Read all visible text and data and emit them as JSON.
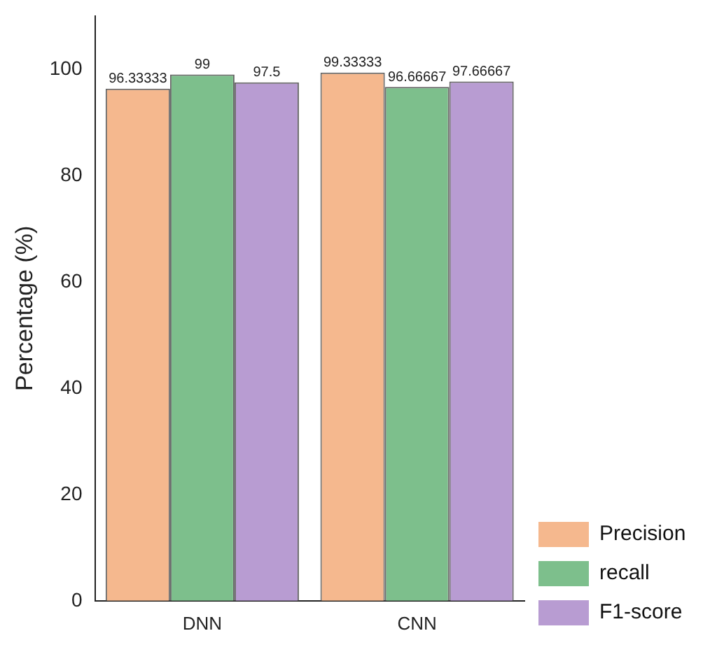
{
  "chart_data": {
    "type": "bar",
    "ylabel": "Percentage (%)",
    "categories": [
      "DNN",
      "CNN"
    ],
    "series": [
      {
        "name": "Precision",
        "color": "#f5b88e",
        "values": [
          96.33333,
          99.33333
        ]
      },
      {
        "name": "recall",
        "color": "#7dbf8c",
        "values": [
          99,
          96.66667
        ]
      },
      {
        "name": "F1-score",
        "color": "#b89cd2",
        "values": [
          97.5,
          97.66667
        ]
      }
    ],
    "ylim": [
      0,
      110
    ],
    "yticks": [
      0,
      20,
      40,
      60,
      80,
      100
    ],
    "grid": false,
    "legend": "bottom right",
    "data_labels": true
  }
}
